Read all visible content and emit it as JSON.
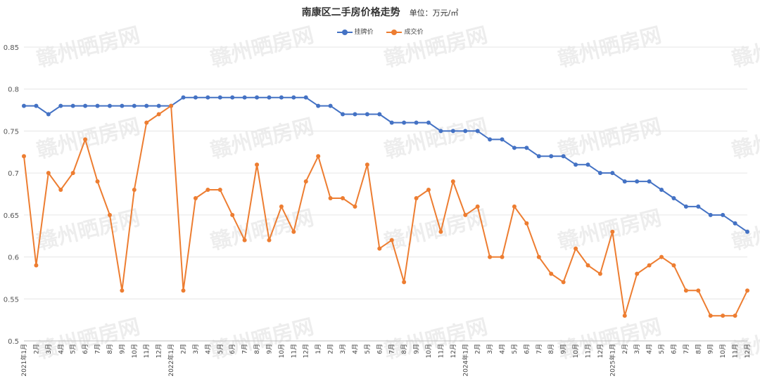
{
  "title": "南康区二手房价格走势",
  "unit": "单位：万元/㎡",
  "watermark": "赣州晒房网",
  "colors": {
    "listing": "#4472C4",
    "deal": "#ED7D31",
    "grid": "#E6E6E6"
  },
  "chart_data": {
    "type": "line",
    "title": "南康区二手房价格走势",
    "ylim": [
      0.5,
      0.85
    ],
    "yticks": [
      "0.5",
      "0.55",
      "0.6",
      "0.65",
      "0.7",
      "0.75",
      "0.8",
      "0.85"
    ],
    "grid": true,
    "legend_position": "top-center",
    "categories": [
      "2021年1月",
      "2月",
      "3月",
      "4月",
      "5月",
      "6月",
      "7月",
      "8月",
      "9月",
      "10月",
      "11月",
      "12月",
      "2022年1月",
      "2月",
      "3月",
      "4月",
      "5月",
      "6月",
      "7月",
      "8月",
      "9月",
      "10月",
      "11月",
      "12月",
      "1月",
      "2月",
      "3月",
      "4月",
      "5月",
      "6月",
      "7月",
      "8月",
      "9月",
      "10月",
      "11月",
      "12月",
      "2024年1月",
      "2月",
      "3月",
      "4月",
      "5月",
      "6月",
      "7月",
      "8月",
      "9月",
      "10月",
      "11月",
      "12月",
      "2025年1月",
      "2月",
      "3月",
      "4月",
      "5月",
      "6月",
      "7月",
      "8月",
      "9月",
      "10月",
      "11月",
      "12月"
    ],
    "series": [
      {
        "name": "挂牌价",
        "values": [
          0.78,
          0.78,
          0.77,
          0.78,
          0.78,
          0.78,
          0.78,
          0.78,
          0.78,
          0.78,
          0.78,
          0.78,
          0.78,
          0.79,
          0.79,
          0.79,
          0.79,
          0.79,
          0.79,
          0.79,
          0.79,
          0.79,
          0.79,
          0.79,
          0.78,
          0.78,
          0.77,
          0.77,
          0.77,
          0.77,
          0.76,
          0.76,
          0.76,
          0.76,
          0.75,
          0.75,
          0.75,
          0.75,
          0.74,
          0.74,
          0.73,
          0.73,
          0.72,
          0.72,
          0.72,
          0.71,
          0.71,
          0.7,
          0.7,
          0.69,
          0.69,
          0.69,
          0.68,
          0.67,
          0.66,
          0.66,
          0.65,
          0.65,
          0.64,
          0.63
        ]
      },
      {
        "name": "成交价",
        "values": [
          0.72,
          0.59,
          0.7,
          0.68,
          0.7,
          0.74,
          0.69,
          0.65,
          0.56,
          0.68,
          0.76,
          0.77,
          0.78,
          0.56,
          0.67,
          0.68,
          0.68,
          0.65,
          0.62,
          0.71,
          0.62,
          0.66,
          0.63,
          0.69,
          0.72,
          0.67,
          0.67,
          0.66,
          0.71,
          0.61,
          0.62,
          0.57,
          0.67,
          0.68,
          0.63,
          0.69,
          0.65,
          0.66,
          0.6,
          0.6,
          0.66,
          0.64,
          0.6,
          0.58,
          0.57,
          0.61,
          0.59,
          0.58,
          0.63,
          0.53,
          0.58,
          0.59,
          0.6,
          0.59,
          0.56,
          0.56,
          0.53,
          0.53,
          0.53,
          0.56
        ]
      }
    ]
  }
}
